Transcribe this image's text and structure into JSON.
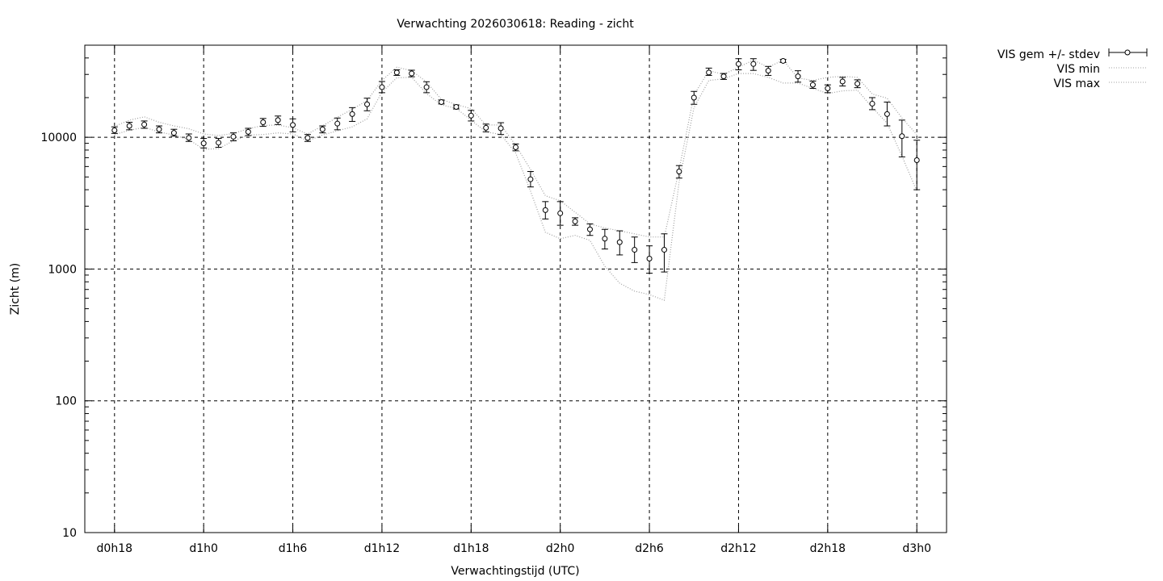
{
  "chart_data": {
    "type": "scatter",
    "title": "Verwachting 2026030618: Reading - zicht",
    "xlabel": "Verwachtingstijd (UTC)",
    "ylabel": "Zicht (m)",
    "y_scale": "log",
    "ylim": [
      10,
      50000
    ],
    "xlim_hours": [
      16,
      74
    ],
    "grid": true,
    "legend_position": "top-right outside",
    "x_ticks": [
      {
        "hour": 18,
        "label": "d0h18"
      },
      {
        "hour": 24,
        "label": "d1h0"
      },
      {
        "hour": 30,
        "label": "d1h6"
      },
      {
        "hour": 36,
        "label": "d1h12"
      },
      {
        "hour": 42,
        "label": "d1h18"
      },
      {
        "hour": 48,
        "label": "d2h0"
      },
      {
        "hour": 54,
        "label": "d2h6"
      },
      {
        "hour": 60,
        "label": "d2h12"
      },
      {
        "hour": 66,
        "label": "d2h18"
      },
      {
        "hour": 72,
        "label": "d3h0"
      }
    ],
    "y_ticks": [
      {
        "value": 10,
        "label": "10"
      },
      {
        "value": 100,
        "label": "100"
      },
      {
        "value": 1000,
        "label": "1000"
      },
      {
        "value": 10000,
        "label": "10000"
      }
    ],
    "series": [
      {
        "name": "VIS gem +/- stdev",
        "style": "points-errorbars",
        "color": "#000000",
        "hours": [
          18,
          19,
          20,
          21,
          22,
          23,
          24,
          25,
          26,
          27,
          28,
          29,
          30,
          31,
          32,
          33,
          34,
          35,
          36,
          37,
          38,
          39,
          40,
          41,
          42,
          43,
          44,
          45,
          46,
          47,
          48,
          49,
          50,
          51,
          52,
          53,
          54,
          55,
          56,
          57,
          58,
          59,
          60,
          61,
          62,
          63,
          64,
          65,
          66,
          67,
          68,
          69,
          70,
          71,
          72
        ],
        "mean": [
          11300,
          12200,
          12500,
          11500,
          10800,
          9900,
          9000,
          9100,
          10100,
          11000,
          13000,
          13500,
          12400,
          9900,
          11500,
          12700,
          15000,
          17800,
          24000,
          31000,
          30500,
          24000,
          18500,
          17000,
          14600,
          11800,
          11700,
          8400,
          4800,
          2800,
          2650,
          2300,
          2000,
          1700,
          1600,
          1400,
          1200,
          1400,
          5500,
          20000,
          31000,
          29000,
          36000,
          36000,
          32000,
          38000,
          29000,
          25000,
          23500,
          26500,
          25500,
          18000,
          15000,
          10200,
          6700
        ],
        "stdev_low": [
          10700,
          11400,
          11700,
          10800,
          10200,
          9300,
          8300,
          8400,
          9400,
          10300,
          12100,
          12500,
          11000,
          9300,
          10800,
          11400,
          13200,
          15900,
          21800,
          29500,
          28800,
          21800,
          17900,
          16400,
          13300,
          11000,
          10500,
          7900,
          4200,
          2400,
          2150,
          2150,
          1800,
          1420,
          1280,
          1120,
          930,
          950,
          4900,
          17800,
          29500,
          27500,
          32500,
          32200,
          29500,
          37000,
          26200,
          23500,
          21800,
          24500,
          23800,
          16200,
          12200,
          7100,
          4000
        ],
        "stdev_high": [
          12000,
          13000,
          13300,
          12200,
          11500,
          10600,
          9800,
          9800,
          10800,
          11700,
          13900,
          14500,
          13800,
          10500,
          12200,
          14000,
          16800,
          19800,
          26500,
          32500,
          32300,
          26400,
          19200,
          17600,
          16000,
          12600,
          12900,
          8900,
          5500,
          3250,
          3250,
          2450,
          2200,
          2000,
          1950,
          1750,
          1500,
          1850,
          6100,
          22300,
          33500,
          30500,
          39500,
          39500,
          34500,
          39000,
          32000,
          26700,
          25000,
          28500,
          27300,
          20000,
          18500,
          13500,
          9500
        ]
      },
      {
        "name": "VIS min",
        "style": "dotted-line",
        "color": "#a0a0a0",
        "hours": [
          18,
          19,
          20,
          21,
          22,
          23,
          24,
          25,
          26,
          27,
          28,
          29,
          30,
          31,
          32,
          33,
          34,
          35,
          36,
          37,
          38,
          39,
          40,
          41,
          42,
          43,
          44,
          45,
          46,
          47,
          48,
          49,
          50,
          51,
          52,
          53,
          54,
          55,
          56,
          57,
          58,
          59,
          60,
          61,
          62,
          63,
          64,
          65,
          66,
          67,
          68,
          69,
          70,
          71,
          72
        ],
        "values": [
          10500,
          11300,
          11900,
          11000,
          10400,
          9600,
          8100,
          8200,
          9400,
          10400,
          10500,
          10800,
          10600,
          9400,
          10400,
          11200,
          12000,
          13800,
          22000,
          28300,
          28500,
          21500,
          17600,
          16600,
          13500,
          11000,
          10500,
          7600,
          3900,
          1900,
          1700,
          1800,
          1650,
          1050,
          780,
          680,
          640,
          580,
          4600,
          16800,
          27000,
          27800,
          30500,
          30500,
          28500,
          25800,
          25800,
          23500,
          21500,
          22500,
          22800,
          16800,
          12800,
          7200,
          3900
        ]
      },
      {
        "name": "VIS max",
        "style": "dotted-line",
        "color": "#a0a0a0",
        "hours": [
          18,
          19,
          20,
          21,
          22,
          23,
          24,
          25,
          26,
          27,
          28,
          29,
          30,
          31,
          32,
          33,
          34,
          35,
          36,
          37,
          38,
          39,
          40,
          41,
          42,
          43,
          44,
          45,
          46,
          47,
          48,
          49,
          50,
          51,
          52,
          53,
          54,
          55,
          56,
          57,
          58,
          59,
          60,
          61,
          62,
          63,
          64,
          65,
          66,
          67,
          68,
          69,
          70,
          71,
          72
        ],
        "values": [
          12100,
          13500,
          14300,
          13000,
          12200,
          11600,
          10600,
          10300,
          10700,
          11600,
          12300,
          12400,
          11800,
          10600,
          12200,
          14200,
          16300,
          19000,
          27000,
          34000,
          32000,
          26300,
          19400,
          17700,
          16500,
          12400,
          12400,
          8700,
          5700,
          3600,
          3300,
          2700,
          2200,
          2050,
          1950,
          1850,
          1750,
          1750,
          5700,
          21000,
          32000,
          30000,
          34000,
          38500,
          34000,
          38500,
          28200,
          27000,
          28500,
          29000,
          28500,
          21300,
          19800,
          14000,
          10500
        ]
      }
    ]
  }
}
